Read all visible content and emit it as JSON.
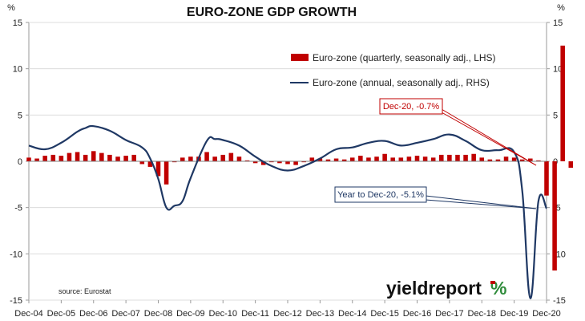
{
  "chart_data": {
    "type": "bar+line",
    "title": "EURO-ZONE GDP GROWTH",
    "left_axis_unit": "%",
    "right_axis_unit": "%",
    "ylim": [
      -15,
      15
    ],
    "y_ticks": [
      "15",
      "10",
      "5",
      "0",
      "-5",
      "-10",
      "-15"
    ],
    "x_tick_labels": [
      "Dec-04",
      "Dec-05",
      "Dec-06",
      "Dec-07",
      "Dec-08",
      "Dec-09",
      "Dec-10",
      "Dec-11",
      "Dec-12",
      "Dec-13",
      "Dec-14",
      "Dec-15",
      "Dec-16",
      "Dec-17",
      "Dec-18",
      "Dec-19",
      "Dec-20"
    ],
    "grid": "horizontal",
    "legend_position": "top-right",
    "series": [
      {
        "name": "Euro-zone (quarterly, seasonally adj., LHS)",
        "kind": "bar",
        "color": "#c00000",
        "x_start": "Dec-04",
        "frequency": "quarterly",
        "values": [
          0.4,
          0.3,
          0.6,
          0.7,
          0.6,
          0.9,
          1.0,
          0.7,
          1.1,
          0.9,
          0.7,
          0.5,
          0.6,
          0.7,
          -0.3,
          -0.6,
          -1.6,
          -2.5,
          -0.1,
          0.4,
          0.5,
          0.5,
          1.0,
          0.5,
          0.7,
          0.9,
          0.5,
          0.1,
          -0.2,
          -0.4,
          -0.1,
          -0.2,
          -0.3,
          -0.4,
          -0.1,
          0.4,
          0.3,
          0.2,
          0.3,
          0.2,
          0.4,
          0.6,
          0.4,
          0.5,
          0.8,
          0.4,
          0.4,
          0.5,
          0.6,
          0.5,
          0.4,
          0.7,
          0.7,
          0.7,
          0.7,
          0.8,
          0.4,
          0.2,
          0.2,
          0.5,
          0.4,
          0.2,
          0.3,
          0.1,
          -3.7,
          -11.8,
          12.5,
          -0.7
        ]
      },
      {
        "name": "Euro-zone (annual, seasonally adj., RHS)",
        "kind": "line",
        "color": "#1f3864",
        "x": [
          "Dec-04",
          "Jun-05",
          "Dec-05",
          "Jun-06",
          "Sep-06",
          "Dec-06",
          "Jun-07",
          "Dec-07",
          "Jun-08",
          "Sep-08",
          "Dec-08",
          "Mar-09",
          "Jun-09",
          "Sep-09",
          "Dec-09",
          "Jun-10",
          "Sep-10",
          "Dec-10",
          "Jun-11",
          "Dec-11",
          "Jun-12",
          "Dec-12",
          "Jun-13",
          "Dec-13",
          "Jun-14",
          "Dec-14",
          "Jun-15",
          "Dec-15",
          "Jun-16",
          "Dec-16",
          "Jun-17",
          "Dec-17",
          "Jun-18",
          "Dec-18",
          "Jun-19",
          "Dec-19",
          "Mar-20",
          "Jun-20",
          "Sep-20",
          "Dec-20"
        ],
        "values": [
          1.7,
          1.3,
          2.0,
          3.2,
          3.6,
          3.8,
          3.3,
          2.3,
          1.5,
          0.3,
          -1.9,
          -5.0,
          -4.8,
          -4.3,
          -1.8,
          2.2,
          2.4,
          2.3,
          1.7,
          0.5,
          -0.5,
          -1.0,
          -0.5,
          0.3,
          1.3,
          1.5,
          2.0,
          2.2,
          1.7,
          2.0,
          2.4,
          2.9,
          2.2,
          1.2,
          1.2,
          1.0,
          -3.2,
          -14.8,
          -4.3,
          -5.1
        ]
      }
    ],
    "annotations": [
      {
        "text": "Dec-20, -0.7%",
        "points_to": "Dec-20 quarterly bar",
        "color": "#c00000"
      },
      {
        "text": "Year to Dec-20, -5.1%",
        "points_to": "Dec-20 annual line",
        "color": "#1f3864"
      }
    ],
    "source": "source: Eurostat",
    "logo": {
      "word": "yieldreport",
      "symbol": "%"
    }
  }
}
